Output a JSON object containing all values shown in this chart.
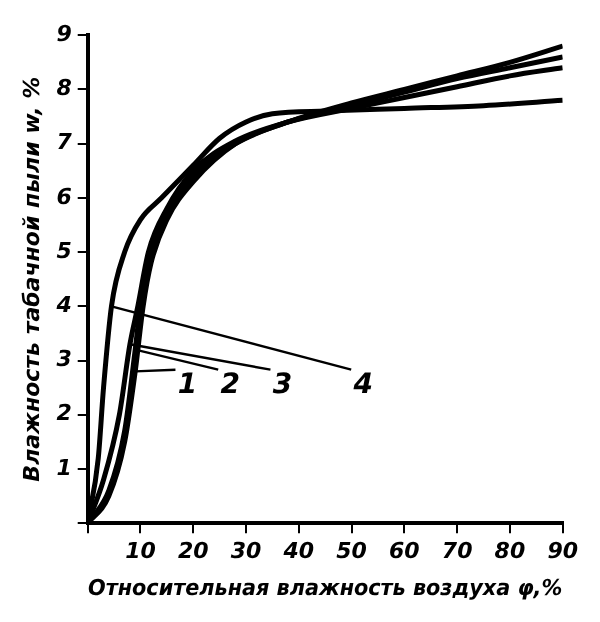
{
  "chart_data": {
    "type": "line",
    "xlabel": "Относительная влажность воздуха φ,%",
    "ylabel": "Влажность табачной пыли w, %",
    "xlim": [
      0,
      90
    ],
    "ylim": [
      0,
      9
    ],
    "xticks": [
      {
        "value": 0,
        "label": null
      },
      10,
      20,
      30,
      40,
      50,
      60,
      70,
      80,
      90
    ],
    "yticks": [
      {
        "value": 0,
        "label": null
      },
      1,
      2,
      3,
      4,
      5,
      6,
      7,
      8,
      9
    ],
    "grid": false,
    "legend": false,
    "marker": "none",
    "line_style": "solid",
    "series": [
      {
        "color": "#000000",
        "x": [
          0,
          4,
          7,
          9,
          10.5,
          12,
          15,
          20,
          28,
          38,
          50,
          60,
          70,
          80,
          90
        ],
        "values": [
          0,
          0.5,
          1.5,
          2.8,
          4,
          4.8,
          5.6,
          6.3,
          7,
          7.4,
          7.75,
          8,
          8.25,
          8.5,
          8.8
        ]
      },
      {
        "color": "#000000",
        "x": [
          0,
          4,
          7,
          9,
          10,
          12,
          15,
          20,
          28,
          38,
          50,
          60,
          70,
          80,
          90
        ],
        "values": [
          0,
          0.6,
          1.7,
          3.2,
          4,
          4.9,
          5.7,
          6.4,
          7,
          7.4,
          7.7,
          7.95,
          8.2,
          8.4,
          8.6
        ]
      },
      {
        "color": "#000000",
        "x": [
          0,
          3,
          6,
          8,
          9.5,
          11.5,
          15,
          20,
          28,
          38,
          50,
          60,
          70,
          80,
          90
        ],
        "values": [
          0,
          0.8,
          2,
          3.3,
          4,
          5,
          5.8,
          6.5,
          7.05,
          7.4,
          7.65,
          7.85,
          8.05,
          8.25,
          8.4
        ]
      },
      {
        "color": "#000000",
        "x": [
          0,
          2,
          3,
          4.5,
          7,
          10,
          14,
          20,
          25,
          30,
          35,
          45,
          60,
          75,
          90
        ],
        "values": [
          0,
          1.2,
          2.5,
          4,
          5,
          5.6,
          6,
          6.6,
          7.1,
          7.4,
          7.55,
          7.6,
          7.65,
          7.7,
          7.8
        ]
      }
    ],
    "annotations": [
      {
        "text": "1",
        "x": 9,
        "y": 2.8
      },
      {
        "text": "2",
        "x": 9,
        "y": 3.2
      },
      {
        "text": "3",
        "x": 8,
        "y": 3.3
      },
      {
        "text": "4",
        "x": 4.5,
        "y": 4
      }
    ]
  }
}
